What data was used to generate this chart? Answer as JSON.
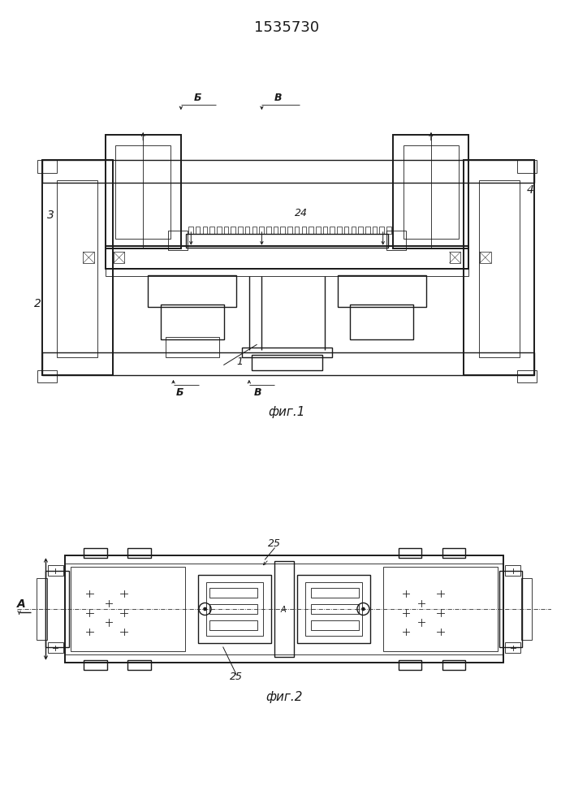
{
  "title": "1535730",
  "fig1_label": "фиг.1",
  "fig2_label": "фиг.2",
  "bg_color": "#ffffff",
  "line_color": "#1a1a1a",
  "lw": 1.0,
  "lw_thin": 0.6,
  "lw_thick": 1.4
}
